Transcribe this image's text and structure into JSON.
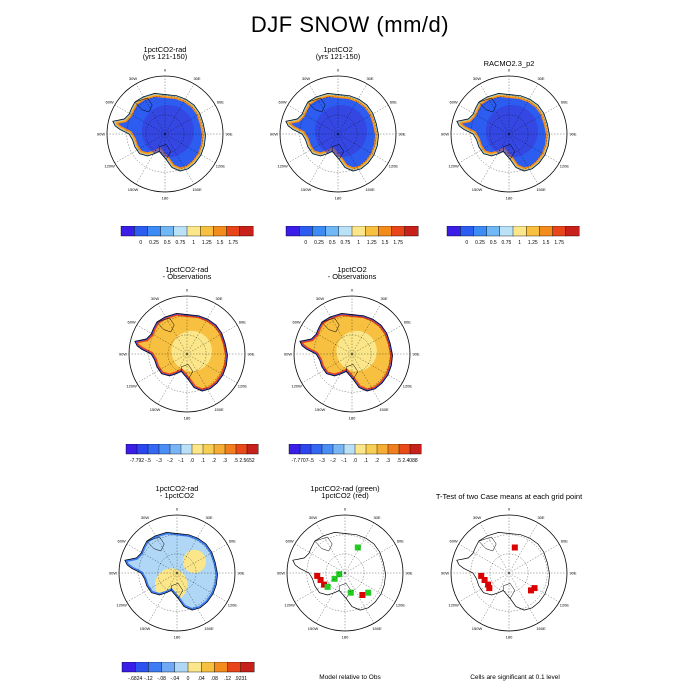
{
  "title": "DJF SNOW (mm/d)",
  "lon_labels": [
    "0",
    "30E",
    "60E",
    "90E",
    "120E",
    "150E",
    "180",
    "150W",
    "120W",
    "90W",
    "60W",
    "30W"
  ],
  "panels": [
    {
      "id": "p1",
      "title1": "1pctCO2-rad",
      "title2": "(yrs 121-150)",
      "scheme": "abs"
    },
    {
      "id": "p2",
      "title1": "1pctCO2",
      "title2": "(yrs 121-150)",
      "scheme": "abs"
    },
    {
      "id": "p3",
      "title1": "RACMO2.3_p2",
      "title2": "",
      "scheme": "abs"
    },
    {
      "id": "p4",
      "title1": "1pctCO2-rad",
      "title2": "- Observations",
      "scheme": "diff"
    },
    {
      "id": "p5",
      "title1": "1pctCO2",
      "title2": "- Observations",
      "scheme": "diff"
    },
    {
      "id": "p6",
      "title1": "1pctCO2-rad",
      "title2": "- 1pctCO2",
      "scheme": "diff2"
    },
    {
      "id": "p7",
      "title1": "1pctCO2-rad (green)",
      "title2": "1pctCO2 (red)",
      "scheme": "points"
    },
    {
      "id": "p8",
      "title1": "T-Test of two Case means at each grid point",
      "title2": "",
      "scheme": "ttest"
    }
  ],
  "colorbars": [
    {
      "id": "cb1",
      "labels": [
        "0",
        "0.25",
        "0.5",
        "0.75",
        "1",
        "1.25",
        "1.5",
        "1.75"
      ],
      "colors": [
        "#3a1de6",
        "#2c5cf0",
        "#3d8cf5",
        "#6fb8f5",
        "#b9e2f7",
        "#fbe68a",
        "#f7c040",
        "#f48b1d",
        "#e8451a",
        "#c8201a"
      ]
    },
    {
      "id": "cb2",
      "labels": [
        "0",
        "0.25",
        "0.5",
        "0.75",
        "1",
        "1.25",
        "1.5",
        "1.75"
      ],
      "colors": [
        "#3a1de6",
        "#2c5cf0",
        "#3d8cf5",
        "#6fb8f5",
        "#b9e2f7",
        "#fbe68a",
        "#f7c040",
        "#f48b1d",
        "#e8451a",
        "#c8201a"
      ]
    },
    {
      "id": "cb3",
      "labels": [
        "0",
        "0.25",
        "0.5",
        "0.75",
        "1",
        "1.25",
        "1.5",
        "1.75"
      ],
      "colors": [
        "#3a1de6",
        "#2c5cf0",
        "#3d8cf5",
        "#6fb8f5",
        "#b9e2f7",
        "#fbe68a",
        "#f7c040",
        "#f48b1d",
        "#e8451a",
        "#c8201a"
      ]
    },
    {
      "id": "cb4",
      "labels": [
        "-7.792",
        "-.5",
        "-.3",
        "-.2",
        "-.1",
        ".0",
        ".1",
        ".2",
        ".3",
        ".5",
        "2.5652"
      ],
      "colors": [
        "#3a1de6",
        "#2c46ef",
        "#3468f3",
        "#4a8ef5",
        "#79b4f5",
        "#b9e0f6",
        "#fbe68a",
        "#f8cf55",
        "#f5ad35",
        "#f17f1f",
        "#e84a1a",
        "#c8201a"
      ]
    },
    {
      "id": "cb5",
      "labels": [
        "-7.7707",
        "-.5",
        "-.3",
        "-.2",
        "-.1",
        ".0",
        ".1",
        ".2",
        ".3",
        ".5",
        "2.4088"
      ],
      "colors": [
        "#3a1de6",
        "#2c46ef",
        "#3468f3",
        "#4a8ef5",
        "#79b4f5",
        "#b9e0f6",
        "#fbe68a",
        "#f8cf55",
        "#f5ad35",
        "#f17f1f",
        "#e84a1a",
        "#c8201a"
      ]
    },
    {
      "id": "cb6",
      "labels": [
        "-.6824",
        "-.12",
        "-.08",
        "-.04",
        "0",
        ".04",
        ".08",
        ".12",
        ".9231"
      ],
      "colors": [
        "#3a1de6",
        "#2c52ef",
        "#3f7cf3",
        "#6fa8f4",
        "#b0d8f6",
        "#fbe68a",
        "#f7c040",
        "#f48b1d",
        "#e8451a",
        "#c8201a"
      ]
    }
  ],
  "captions": {
    "p7": "Model relative to Obs",
    "p8": "Cells are significant at 0.1 level"
  }
}
